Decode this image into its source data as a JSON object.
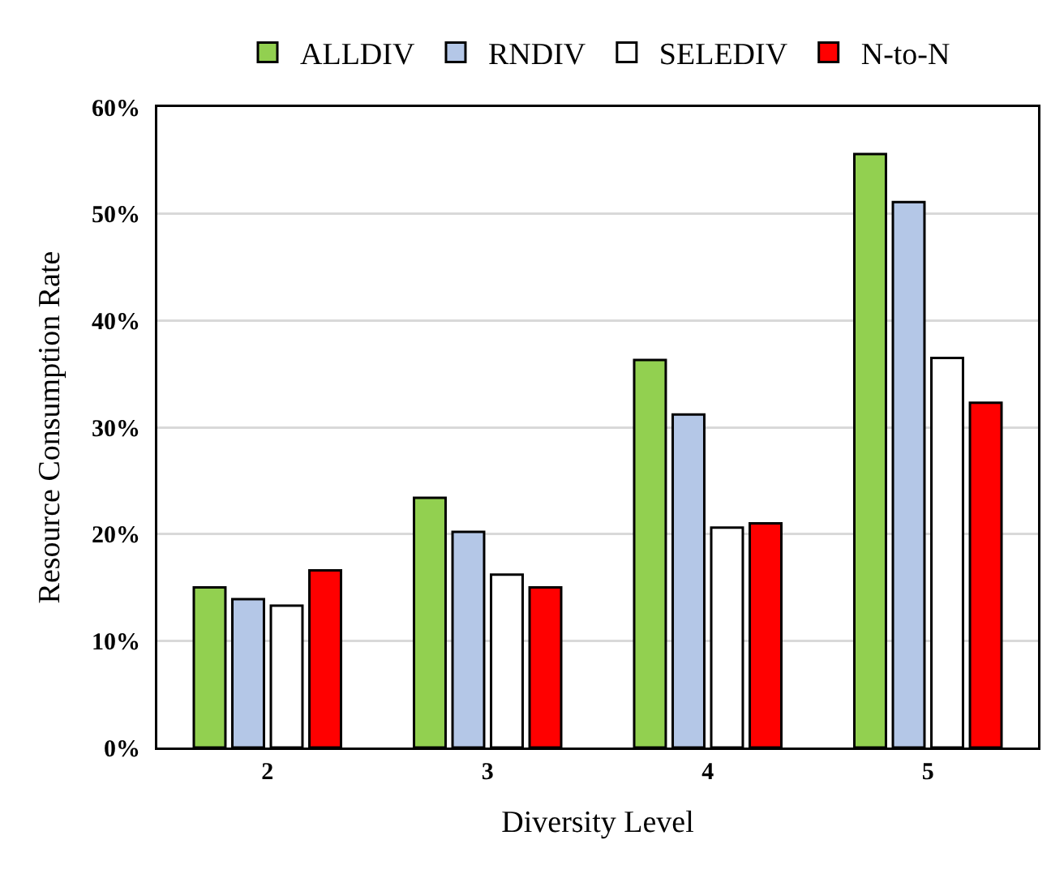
{
  "chart_data": {
    "type": "bar",
    "xlabel": "Diversity Level",
    "ylabel": "Resource Consumption Rate",
    "categories": [
      "2",
      "3",
      "4",
      "5"
    ],
    "series": [
      {
        "name": "ALLDIV",
        "color": "#92d050",
        "values": [
          15.0,
          23.4,
          36.3,
          55.6
        ]
      },
      {
        "name": "RNDIV",
        "color": "#b4c7e7",
        "values": [
          13.9,
          20.2,
          31.2,
          51.1
        ]
      },
      {
        "name": "SELEDIV",
        "color": "#ffffff",
        "values": [
          13.3,
          16.2,
          20.6,
          36.5
        ]
      },
      {
        "name": "N-to-N",
        "color": "#ff0000",
        "values": [
          16.6,
          15.0,
          21.0,
          32.3
        ]
      }
    ],
    "ylim": [
      0,
      60
    ],
    "yticks": [
      {
        "value": 0,
        "label": "0%"
      },
      {
        "value": 10,
        "label": "10%"
      },
      {
        "value": 20,
        "label": "20%"
      },
      {
        "value": 30,
        "label": "30%"
      },
      {
        "value": 40,
        "label": "40%"
      },
      {
        "value": 50,
        "label": "50%"
      },
      {
        "value": 60,
        "label": "60%"
      }
    ],
    "grid": "y",
    "legend": "top"
  }
}
